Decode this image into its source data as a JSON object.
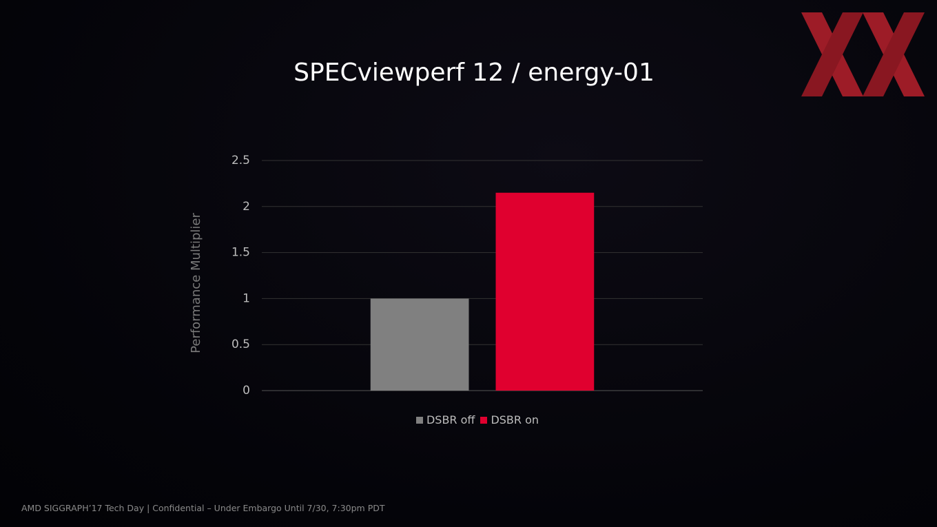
{
  "chart_data": {
    "type": "bar",
    "title": "SPECviewperf 12 / energy-01",
    "y_label": "Performance Multiplier",
    "categories": [
      null
    ],
    "series": [
      {
        "name": "DSBR off",
        "color": "#808080",
        "values": [
          1
        ]
      },
      {
        "name": "DSBR on",
        "color": "#e0002f",
        "values": [
          2.15
        ]
      }
    ],
    "ylim": [
      0,
      2.5
    ],
    "yticks": [
      0,
      0.5,
      1,
      1.5,
      2,
      2.5
    ],
    "grid": true,
    "legend": "bottom"
  },
  "footer": "AMD SIGGRAPH’17 Tech Day | Confidential – Under Embargo Until 7/30, 7:30pm PDT"
}
